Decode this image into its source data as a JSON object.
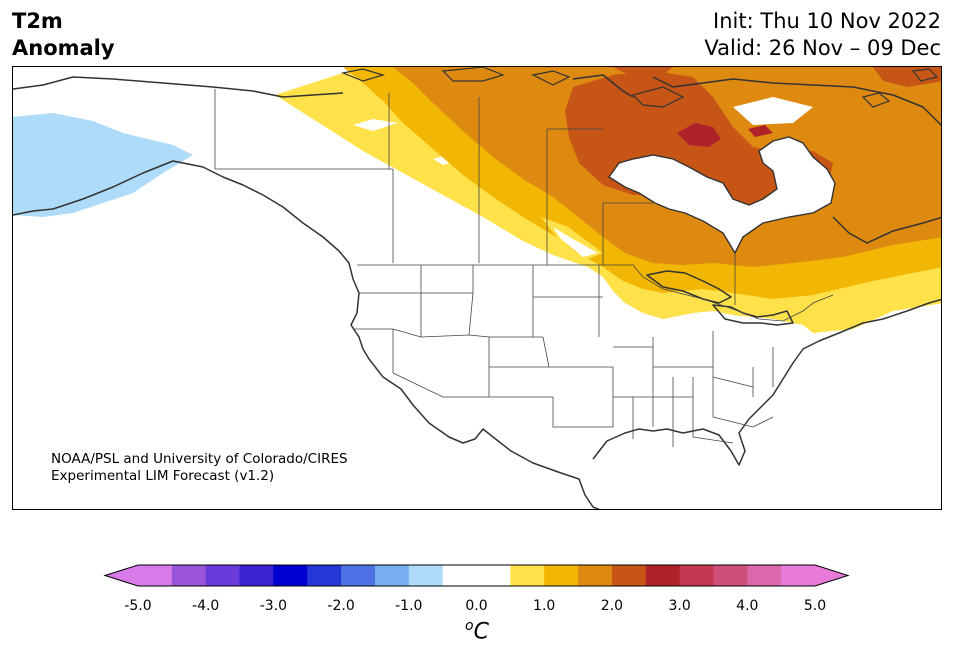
{
  "title": {
    "line1": "T2m",
    "line2": "Anomaly"
  },
  "dates": {
    "init": "Init: Thu 10 Nov 2022",
    "valid": "Valid: 26 Nov – 09 Dec"
  },
  "credit": {
    "line1": "NOAA/PSL and University of Colorado/CIRES",
    "line2": "Experimental LIM Forecast (v1.2)"
  },
  "colorbar": {
    "tick_labels": [
      "-5.0",
      "-4.0",
      "-3.0",
      "-2.0",
      "-1.0",
      "0.0",
      "1.0",
      "2.0",
      "3.0",
      "4.0",
      "5.0"
    ],
    "unit_base": "C",
    "unit_super": "o",
    "colors": [
      "#d87ae8",
      "#9b55d8",
      "#6a3adb",
      "#3a22d0",
      "#0000d0",
      "#2438d8",
      "#4e72e6",
      "#76aef0",
      "#aedcf8",
      "#ffffff",
      "#ffffff",
      "#ffe14a",
      "#f2b604",
      "#de8a10",
      "#c65516",
      "#b0222a",
      "#c23850",
      "#d04e7a",
      "#dc68ac",
      "#e87ad8"
    ],
    "extend_low_color": "#d87ae8",
    "extend_high_color": "#e87ad8"
  },
  "map_colors": {
    "pos_0_5": "#ffe14a",
    "pos_1_0": "#f2b604",
    "pos_1_5": "#de8a10",
    "pos_2_0": "#c65516",
    "pos_2_5": "#b0222a",
    "neg_0_5": "#aedcf8",
    "coast": "#333333",
    "border": "#444444"
  }
}
